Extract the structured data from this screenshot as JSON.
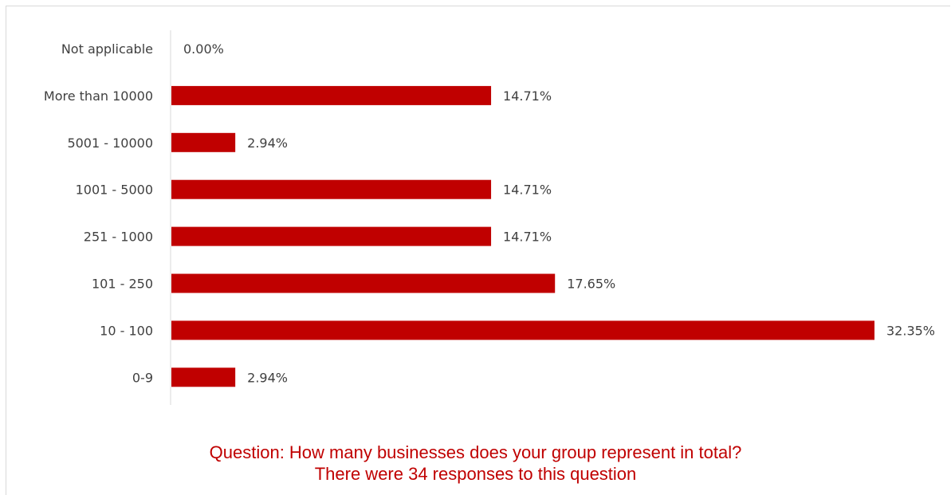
{
  "chart_data": {
    "type": "bar",
    "orientation": "horizontal",
    "categories": [
      "Not applicable",
      "More than 10000",
      "5001 - 10000",
      "1001 - 5000",
      "251 - 1000",
      "101 - 250",
      "10 - 100",
      "0-9"
    ],
    "values": [
      0.0,
      14.71,
      2.94,
      14.71,
      14.71,
      17.65,
      32.35,
      2.94
    ],
    "value_labels": [
      "0.00%",
      "14.71%",
      "2.94%",
      "14.71%",
      "14.71%",
      "17.65%",
      "32.35%",
      "2.94%"
    ],
    "value_unit": "%",
    "xlim": [
      0,
      32.35
    ],
    "grid": false,
    "legend": "none",
    "bar_color": "#c00000"
  },
  "caption": {
    "line1": "Question: How many businesses does your group represent in total?",
    "line2": "There were 34 responses to this question"
  }
}
